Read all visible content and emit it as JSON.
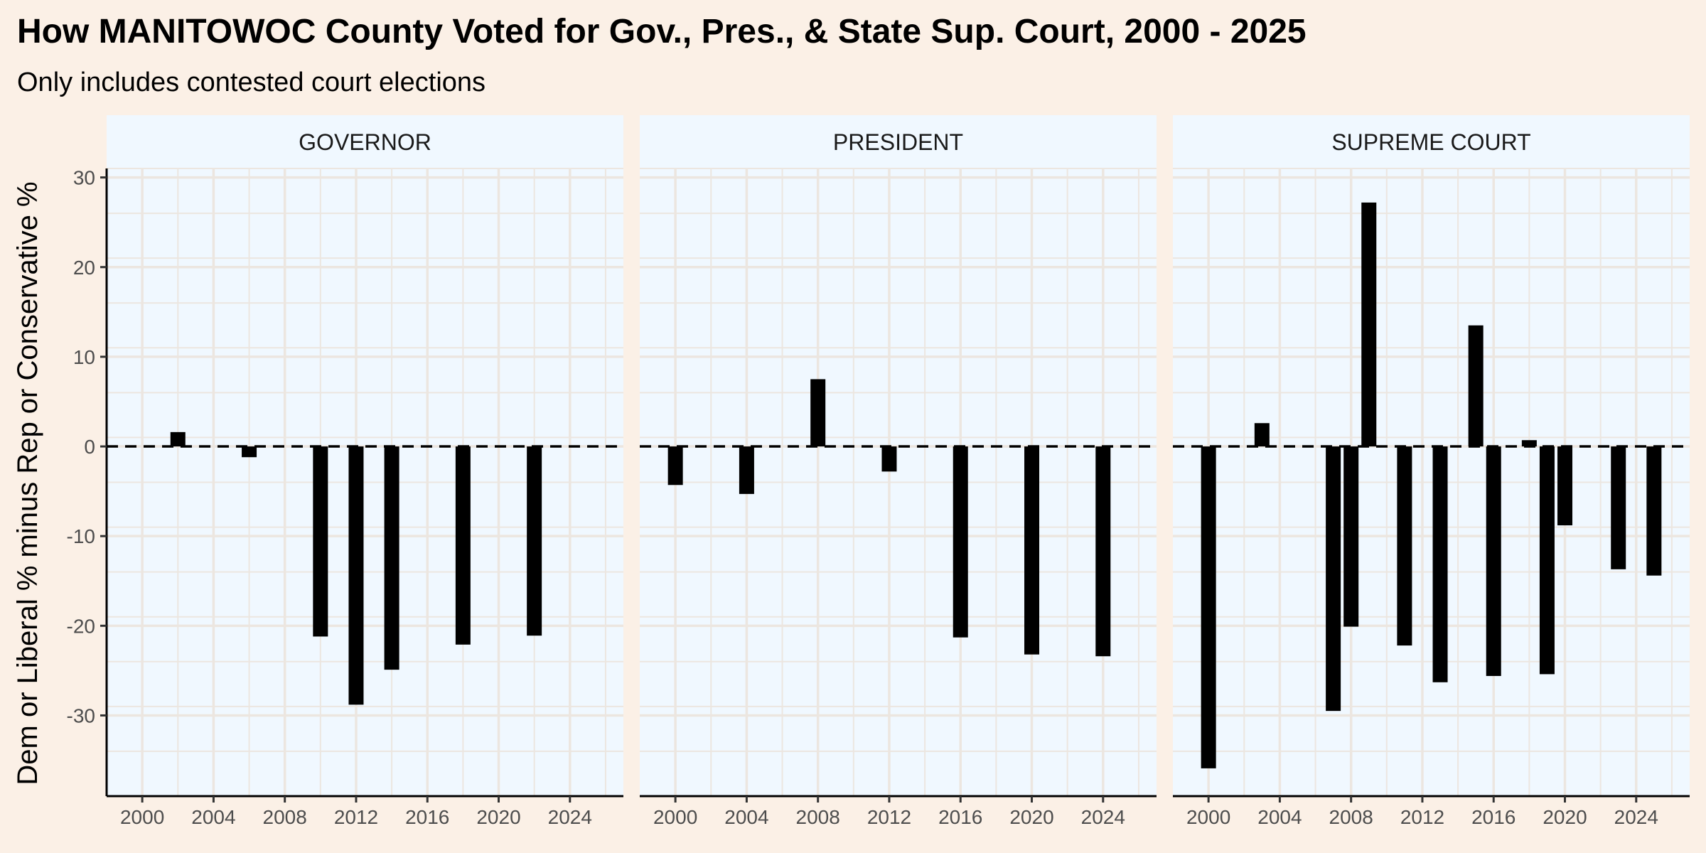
{
  "chart_data": {
    "type": "bar",
    "title": "How MANITOWOC County Voted for Gov., Pres., & State Sup. Court, 2000 - 2025",
    "subtitle": "Only includes contested court elections",
    "ylabel": "Dem or Liberal % minus Rep or Conservative %",
    "xlabel": "",
    "ylim": [
      -39,
      31
    ],
    "xlim": [
      1998,
      2027
    ],
    "y_ticks": [
      30,
      20,
      10,
      0,
      -10,
      -20,
      -30
    ],
    "x_ticks": [
      2000,
      2004,
      2008,
      2012,
      2016,
      2020,
      2024
    ],
    "reference_line": 0,
    "grid": true,
    "colors": {
      "background": "#FBF0E6",
      "panel": "#F0F8FF",
      "grid": "#ECE6E0",
      "bar": "#000000"
    },
    "panels": [
      {
        "name": "GOVERNOR",
        "values": [
          {
            "x": 2002,
            "y": 1.6
          },
          {
            "x": 2006,
            "y": -1.2
          },
          {
            "x": 2010,
            "y": -21.2
          },
          {
            "x": 2012,
            "y": -28.8
          },
          {
            "x": 2014,
            "y": -24.9
          },
          {
            "x": 2018,
            "y": -22.1
          },
          {
            "x": 2022,
            "y": -21.1
          }
        ]
      },
      {
        "name": "PRESIDENT",
        "values": [
          {
            "x": 2000,
            "y": -4.3
          },
          {
            "x": 2004,
            "y": -5.3
          },
          {
            "x": 2008,
            "y": 7.5
          },
          {
            "x": 2012,
            "y": -2.8
          },
          {
            "x": 2016,
            "y": -21.3
          },
          {
            "x": 2020,
            "y": -23.2
          },
          {
            "x": 2024,
            "y": -23.4
          }
        ]
      },
      {
        "name": "SUPREME COURT",
        "values": [
          {
            "x": 2000,
            "y": -35.9
          },
          {
            "x": 2003,
            "y": 2.6
          },
          {
            "x": 2007,
            "y": -29.5
          },
          {
            "x": 2008,
            "y": -20.1
          },
          {
            "x": 2009,
            "y": 27.2
          },
          {
            "x": 2011,
            "y": -22.2
          },
          {
            "x": 2013,
            "y": -26.3
          },
          {
            "x": 2015,
            "y": 13.5
          },
          {
            "x": 2016,
            "y": -25.6
          },
          {
            "x": 2018,
            "y": 0.7
          },
          {
            "x": 2019,
            "y": -25.4
          },
          {
            "x": 2020,
            "y": -8.8
          },
          {
            "x": 2023,
            "y": -13.7
          },
          {
            "x": 2025,
            "y": -14.4
          }
        ]
      }
    ]
  }
}
